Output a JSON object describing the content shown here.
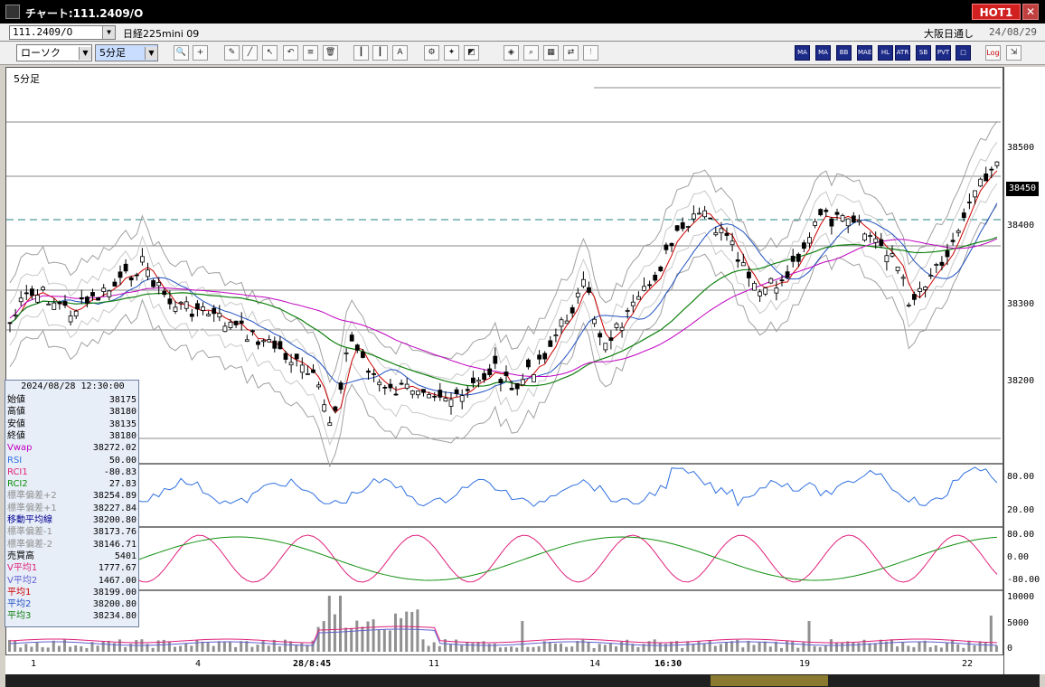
{
  "window": {
    "title": "チャート:111.2409/O",
    "hot_label": "HOT1",
    "close_glyph": "✕"
  },
  "infobar": {
    "symbol": "111.2409/O",
    "instrument": "日経225mini 09",
    "market": "大阪日通し",
    "date": "24/08/29"
  },
  "toolbar": {
    "chart_type": "ローソク",
    "interval": "5分足",
    "right_buttons": [
      "MA",
      "MA",
      "BB",
      "MAE",
      "HL",
      "ATR",
      "SB",
      "PVT",
      "□",
      "Log"
    ]
  },
  "chart": {
    "timeframe_label": "5分足",
    "current_price": "38450",
    "price_axis": [
      "38500",
      "38400",
      "38300",
      "38200"
    ],
    "rsi_axis": [
      "80.00",
      "20.00"
    ],
    "rci_axis": [
      "80.00",
      "0.00",
      "-80.00"
    ],
    "volume_axis": [
      "10000",
      "5000",
      "0"
    ],
    "x_axis": [
      "1",
      "4",
      "28/8:45",
      "11",
      "14",
      "16:30",
      "19",
      "22"
    ],
    "colors": {
      "candle": "#000000",
      "ma1": "#cc0000",
      "ma2": "#2050c0",
      "ma3": "#108010",
      "vwap": "#c000c0",
      "band": "#a0a0a0",
      "rsi": "#3070e0",
      "rci1": "#e0207a",
      "rci2": "#109010"
    }
  },
  "data_panel": {
    "datetime": "2024/08/28 12:30:00",
    "rows": [
      {
        "key": "始値",
        "value": "38175",
        "color": "#000000"
      },
      {
        "key": "高値",
        "value": "38180",
        "color": "#000000"
      },
      {
        "key": "安値",
        "value": "38135",
        "color": "#000000"
      },
      {
        "key": "終値",
        "value": "38180",
        "color": "#000000"
      },
      {
        "key": "Vwap",
        "value": "38272.02",
        "color": "#c000c0"
      },
      {
        "key": "RSI",
        "value": "50.00",
        "color": "#3070e0"
      },
      {
        "key": "RCI1",
        "value": "-80.83",
        "color": "#e0207a"
      },
      {
        "key": "RCI2",
        "value": "27.83",
        "color": "#109010"
      },
      {
        "key": "標準偏差+2",
        "value": "38254.89",
        "color": "#909090"
      },
      {
        "key": "標準偏差+1",
        "value": "38227.84",
        "color": "#909090"
      },
      {
        "key": "移動平均線",
        "value": "38200.80",
        "color": "#000090"
      },
      {
        "key": "標準偏差-1",
        "value": "38173.76",
        "color": "#909090"
      },
      {
        "key": "標準偏差-2",
        "value": "38146.71",
        "color": "#909090"
      },
      {
        "key": "売買高",
        "value": "5401",
        "color": "#000000"
      },
      {
        "key": "V平均1",
        "value": "1777.67",
        "color": "#e0207a"
      },
      {
        "key": "V平均2",
        "value": "1467.00",
        "color": "#6060d0"
      },
      {
        "key": "平均1",
        "value": "38199.00",
        "color": "#cc0000"
      },
      {
        "key": "平均2",
        "value": "38200.80",
        "color": "#2050c0"
      },
      {
        "key": "平均3",
        "value": "38234.80",
        "color": "#108010"
      }
    ]
  }
}
